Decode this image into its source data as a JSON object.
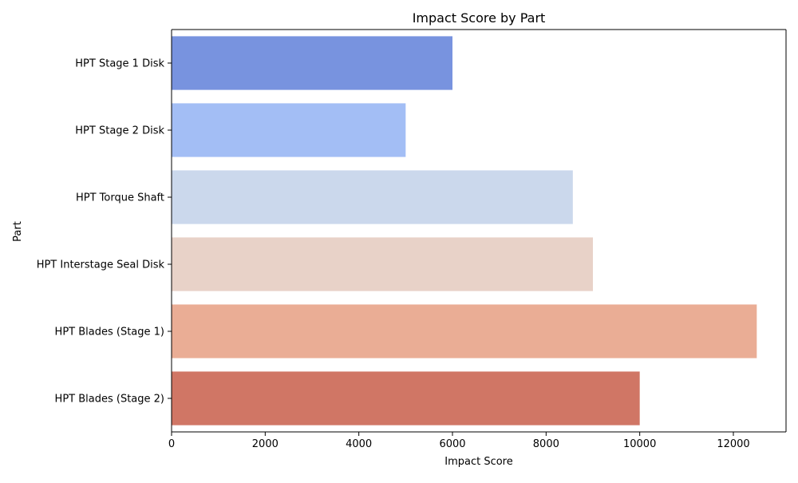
{
  "chart_data": {
    "type": "bar",
    "orientation": "horizontal",
    "title": "Impact Score by Part",
    "xlabel": "Impact Score",
    "ylabel": "Part",
    "xlim": [
      0,
      13125
    ],
    "xticks": [
      0,
      2000,
      4000,
      6000,
      8000,
      10000,
      12000
    ],
    "grid": false,
    "legend": "none",
    "categories": [
      "HPT Stage 1 Disk",
      "HPT Stage 2 Disk",
      "HPT Torque Shaft",
      "HPT Interstage Seal Disk",
      "HPT Blades (Stage 1)",
      "HPT Blades (Stage 2)"
    ],
    "values": [
      6000,
      5000,
      8571,
      9000,
      12500,
      10000
    ],
    "colors": [
      "#7893df",
      "#a3bef5",
      "#cbd8ec",
      "#e8d2c8",
      "#eaad95",
      "#d07665"
    ]
  }
}
